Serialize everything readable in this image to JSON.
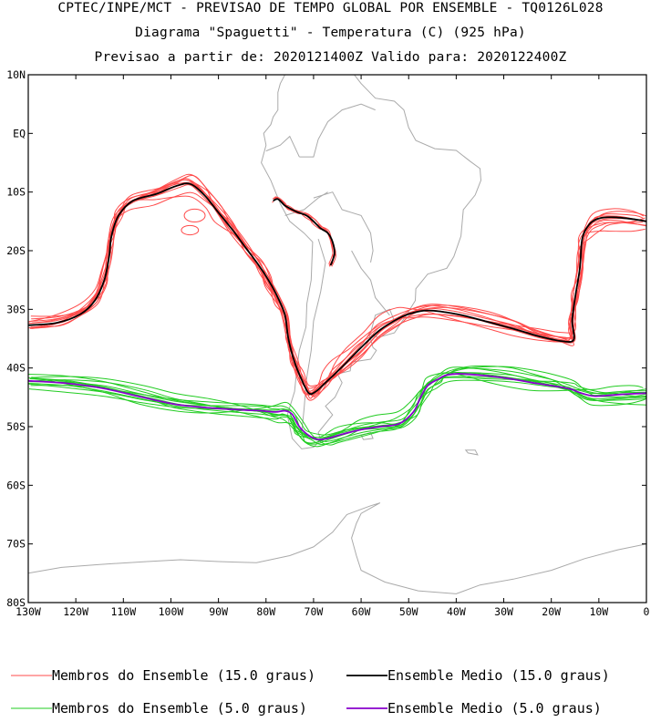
{
  "header": {
    "line1": "CPTEC/INPE/MCT - PREVISAO DE TEMPO GLOBAL POR ENSEMBLE - TQ0126L028",
    "line2": "Diagrama \"Spaguetti\" - Temperatura (C) (925 hPa)",
    "line3": "Previsao a partir de: 2020121400Z  Valido para: 2020122400Z"
  },
  "chart_data": {
    "type": "line",
    "title": "Diagrama \"Spaguetti\" - Temperatura (C) (925 hPa)",
    "xlabel": "",
    "ylabel": "",
    "xlim": [
      -130,
      0
    ],
    "ylim": [
      -80,
      10
    ],
    "x_ticks": [
      {
        "value": -130,
        "label": "130W"
      },
      {
        "value": -120,
        "label": "120W"
      },
      {
        "value": -110,
        "label": "110W"
      },
      {
        "value": -100,
        "label": "100W"
      },
      {
        "value": -90,
        "label": "90W"
      },
      {
        "value": -80,
        "label": "80W"
      },
      {
        "value": -70,
        "label": "70W"
      },
      {
        "value": -60,
        "label": "60W"
      },
      {
        "value": -50,
        "label": "50W"
      },
      {
        "value": -40,
        "label": "40W"
      },
      {
        "value": -30,
        "label": "30W"
      },
      {
        "value": -20,
        "label": "20W"
      },
      {
        "value": -10,
        "label": "10W"
      },
      {
        "value": 0,
        "label": "0"
      }
    ],
    "y_ticks": [
      {
        "value": 10,
        "label": "10N"
      },
      {
        "value": 0,
        "label": "EQ"
      },
      {
        "value": -10,
        "label": "10S"
      },
      {
        "value": -20,
        "label": "20S"
      },
      {
        "value": -30,
        "label": "30S"
      },
      {
        "value": -40,
        "label": "40S"
      },
      {
        "value": -50,
        "label": "50S"
      },
      {
        "value": -60,
        "label": "60S"
      },
      {
        "value": -70,
        "label": "70S"
      },
      {
        "value": -80,
        "label": "80S"
      }
    ],
    "series": [
      {
        "name": "Ensemble Medio (15.0 graus)",
        "color": "#000000",
        "x": [
          -130,
          -124,
          -119,
          -116,
          -114,
          -113,
          -112.5,
          -111,
          -108,
          -103,
          -99,
          -96,
          -93,
          -90,
          -87,
          -84,
          -81.5,
          -79.5,
          -77.5,
          -76,
          -75.3,
          -74,
          -72.5,
          -71,
          -69.5,
          -67.5,
          -65.5,
          -63,
          -60,
          -56,
          -52,
          -49.5,
          -46,
          -40,
          -34,
          -28,
          -23,
          -18,
          -15.3,
          -15.6,
          -15,
          -14,
          -13.5,
          -12,
          -10,
          -7,
          -3,
          0
        ],
        "y": [
          -32.7,
          -32.3,
          -30.8,
          -28.5,
          -25.0,
          -21.0,
          -17.5,
          -14.0,
          -11.5,
          -10.3,
          -9.0,
          -8.6,
          -10.5,
          -13.5,
          -16.5,
          -19.8,
          -22.5,
          -25.0,
          -28.0,
          -31.0,
          -35.0,
          -39.0,
          -42.0,
          -44.3,
          -44.0,
          -42.5,
          -41.0,
          -39.0,
          -36.5,
          -33.5,
          -31.5,
          -30.7,
          -30.2,
          -30.8,
          -32.0,
          -33.3,
          -34.5,
          -35.4,
          -35.2,
          -32.0,
          -28.0,
          -23.0,
          -18.0,
          -15.5,
          -14.5,
          -14.3,
          -14.6,
          -15.0
        ]
      },
      {
        "name": "Ensemble Medio (5.0 graus)",
        "color": "#8800cc",
        "x": [
          -130,
          -122,
          -114,
          -106,
          -99,
          -92,
          -86,
          -81,
          -78,
          -76,
          -74.5,
          -73,
          -71,
          -69,
          -67,
          -64,
          -60,
          -56,
          -52,
          -49,
          -47.5,
          -46,
          -44,
          -42,
          -39,
          -34,
          -29,
          -24,
          -20,
          -16,
          -14,
          -11,
          -7,
          -3,
          0
        ],
        "y": [
          -42.2,
          -42.6,
          -43.5,
          -45.0,
          -46.2,
          -46.8,
          -47.1,
          -47.3,
          -47.5,
          -47.3,
          -47.9,
          -50.0,
          -51.5,
          -52.2,
          -52.0,
          -51.3,
          -50.5,
          -50.0,
          -49.5,
          -47.5,
          -45.0,
          -43.0,
          -42.0,
          -41.2,
          -41.0,
          -41.3,
          -41.8,
          -42.5,
          -43.0,
          -43.6,
          -44.2,
          -44.8,
          -44.6,
          -44.4,
          -44.3
        ]
      },
      {
        "name": "Ensemble Medio (15.0 graus) - Andes",
        "color": "#000000",
        "x": [
          -78.5,
          -77.5,
          -76.2,
          -75.4,
          -73.5,
          -71.5,
          -70.0,
          -68.5,
          -67.0,
          -66.0,
          -65.6,
          -66.4
        ],
        "y": [
          -11.5,
          -11.2,
          -12.2,
          -12.6,
          -13.4,
          -14.0,
          -15.0,
          -16.2,
          -17.0,
          -18.5,
          -20.5,
          -22.5
        ]
      }
    ],
    "member_sets": [
      {
        "name": "Membros do Ensemble (15.0 graus)",
        "color": "#ff4b4b",
        "base_series": 0,
        "count": 11
      },
      {
        "name": "Membros do Ensemble (5.0 graus)",
        "color": "#22cc22",
        "base_series": 1,
        "count": 11
      }
    ],
    "colors": {
      "red_members": "#ff4b4b",
      "green_members": "#22cc22",
      "mean_15": "#000000",
      "mean_5": "#8800cc",
      "map_lines": "#aaaaaa"
    }
  },
  "legend": {
    "items": [
      {
        "label": "Membros do Ensemble (15.0 graus)",
        "color": "#ff4b4b"
      },
      {
        "label": "Ensemble Medio (15.0 graus)",
        "color": "#000000"
      },
      {
        "label": "Membros do Ensemble (5.0 graus)",
        "color": "#22cc22"
      },
      {
        "label": "Ensemble Medio (5.0 graus)",
        "color": "#8800cc"
      }
    ]
  }
}
